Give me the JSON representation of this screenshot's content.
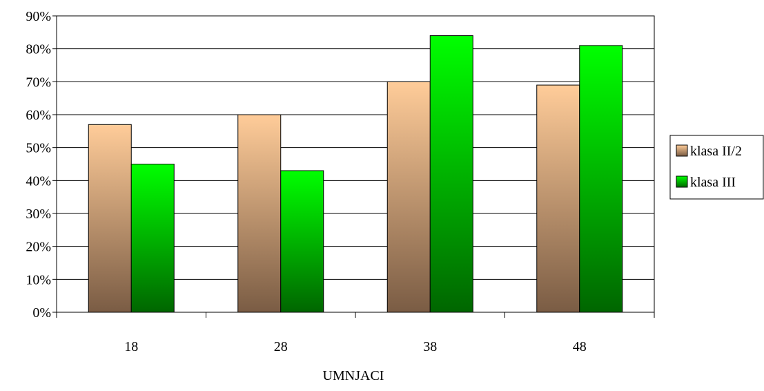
{
  "chart_data": {
    "type": "bar",
    "title": "",
    "xlabel": "UMNJACI",
    "ylabel": "",
    "categories": [
      "18",
      "28",
      "38",
      "48"
    ],
    "ylim": [
      0,
      90
    ],
    "y_tick_step": 10,
    "y_tick_suffix": "%",
    "grid": true,
    "legend_position": "right",
    "series": [
      {
        "name": "klasa II/2",
        "values": [
          57,
          60,
          70,
          69
        ],
        "color_top": "#ffcc99",
        "color_bottom": "#7a5c44"
      },
      {
        "name": "klasa III",
        "values": [
          45,
          43,
          84,
          81
        ],
        "color_top": "#00ff00",
        "color_bottom": "#006600"
      }
    ]
  }
}
